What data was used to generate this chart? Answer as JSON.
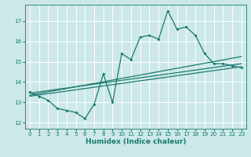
{
  "title": "",
  "xlabel": "Humidex (Indice chaleur)",
  "bg_color": "#cce8e8",
  "line_color": "#1a7a6e",
  "grid_color": "#ffffff",
  "xlim": [
    -0.5,
    23.5
  ],
  "ylim": [
    11.7,
    17.8
  ],
  "yticks": [
    12,
    13,
    14,
    15,
    16,
    17
  ],
  "xticks": [
    0,
    1,
    2,
    3,
    4,
    5,
    6,
    7,
    8,
    9,
    10,
    11,
    12,
    13,
    14,
    15,
    16,
    17,
    18,
    19,
    20,
    21,
    22,
    23
  ],
  "line1_x": [
    0,
    1,
    2,
    3,
    4,
    5,
    6,
    7,
    8,
    9,
    10,
    11,
    12,
    13,
    14,
    15,
    16,
    17,
    18,
    19,
    20,
    21,
    22,
    23
  ],
  "line1_y": [
    13.5,
    13.3,
    13.1,
    12.7,
    12.6,
    12.5,
    12.2,
    12.9,
    14.4,
    13.0,
    15.4,
    15.1,
    16.2,
    16.3,
    16.1,
    17.5,
    16.6,
    16.7,
    16.3,
    15.4,
    14.9,
    14.9,
    14.8,
    14.7
  ],
  "line2_x": [
    0,
    23
  ],
  "line2_y": [
    13.35,
    15.25
  ],
  "line3_x": [
    0,
    23
  ],
  "line3_y": [
    13.3,
    14.75
  ],
  "line4_x": [
    0,
    23
  ],
  "line4_y": [
    13.45,
    14.9
  ]
}
